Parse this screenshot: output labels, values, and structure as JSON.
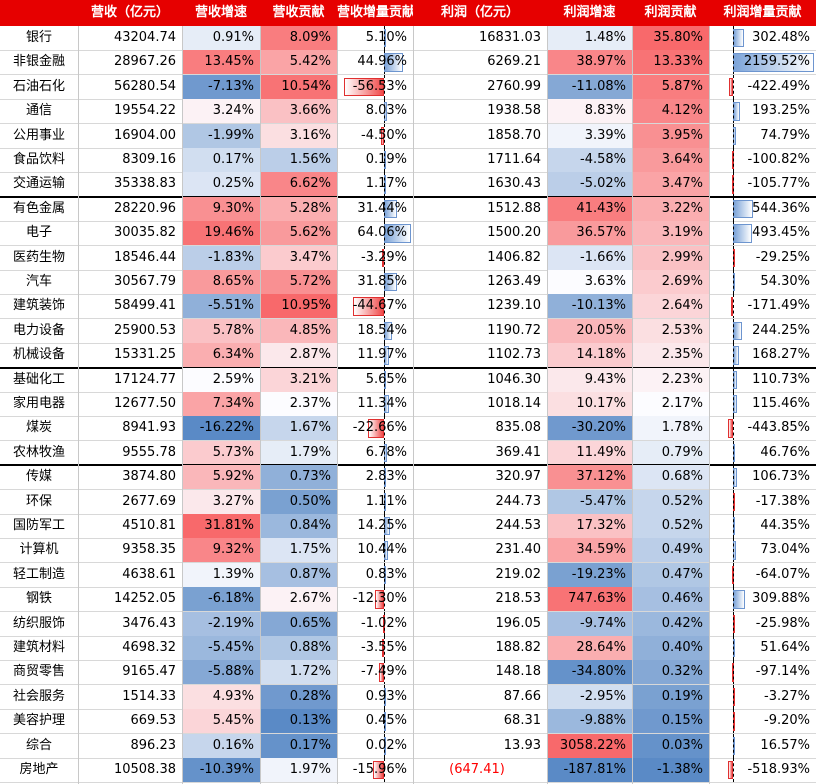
{
  "headers": [
    "",
    "营收（亿元）",
    "营收增速",
    "营收贡献",
    "营收增量贡献",
    "利润（亿元）",
    "利润增速",
    "利润贡献",
    "利润增量贡献"
  ],
  "group_breaks_after": [
    6,
    13,
    17
  ],
  "rows": [
    {
      "name": "银行",
      "revenue": "43204.74",
      "rev_growth": "0.91%",
      "rev_contrib": "8.09%",
      "rev_inc": "5.10%",
      "profit": "16831.03",
      "profit_growth": "1.48%",
      "profit_contrib": "35.80%",
      "profit_inc": "302.48%"
    },
    {
      "name": "非银金融",
      "revenue": "28967.26",
      "rev_growth": "13.45%",
      "rev_contrib": "5.42%",
      "rev_inc": "44.96%",
      "profit": "6269.21",
      "profit_growth": "38.97%",
      "profit_contrib": "13.33%",
      "profit_inc": "2159.52%"
    },
    {
      "name": "石油石化",
      "revenue": "56280.54",
      "rev_growth": "-7.13%",
      "rev_contrib": "10.54%",
      "rev_inc": "-56.53%",
      "profit": "2760.99",
      "profit_growth": "-11.08%",
      "profit_contrib": "5.87%",
      "profit_inc": "-422.49%"
    },
    {
      "name": "通信",
      "revenue": "19554.22",
      "rev_growth": "3.24%",
      "rev_contrib": "3.66%",
      "rev_inc": "8.03%",
      "profit": "1938.58",
      "profit_growth": "8.83%",
      "profit_contrib": "4.12%",
      "profit_inc": "193.25%"
    },
    {
      "name": "公用事业",
      "revenue": "16904.00",
      "rev_growth": "-1.99%",
      "rev_contrib": "3.16%",
      "rev_inc": "-4.50%",
      "profit": "1858.70",
      "profit_growth": "3.39%",
      "profit_contrib": "3.95%",
      "profit_inc": "74.79%"
    },
    {
      "name": "食品饮料",
      "revenue": "8309.16",
      "rev_growth": "0.17%",
      "rev_contrib": "1.56%",
      "rev_inc": "0.19%",
      "profit": "1711.64",
      "profit_growth": "-4.58%",
      "profit_contrib": "3.64%",
      "profit_inc": "-100.82%"
    },
    {
      "name": "交通运输",
      "revenue": "35338.83",
      "rev_growth": "0.25%",
      "rev_contrib": "6.62%",
      "rev_inc": "1.17%",
      "profit": "1630.43",
      "profit_growth": "-5.02%",
      "profit_contrib": "3.47%",
      "profit_inc": "-105.77%"
    },
    {
      "name": "有色金属",
      "revenue": "28220.96",
      "rev_growth": "9.30%",
      "rev_contrib": "5.28%",
      "rev_inc": "31.44%",
      "profit": "1512.88",
      "profit_growth": "41.43%",
      "profit_contrib": "3.22%",
      "profit_inc": "544.36%"
    },
    {
      "name": "电子",
      "revenue": "30035.82",
      "rev_growth": "19.46%",
      "rev_contrib": "5.62%",
      "rev_inc": "64.06%",
      "profit": "1500.20",
      "profit_growth": "36.57%",
      "profit_contrib": "3.19%",
      "profit_inc": "493.45%"
    },
    {
      "name": "医药生物",
      "revenue": "18546.44",
      "rev_growth": "-1.83%",
      "rev_contrib": "3.47%",
      "rev_inc": "-3.29%",
      "profit": "1406.82",
      "profit_growth": "-1.66%",
      "profit_contrib": "2.99%",
      "profit_inc": "-29.25%"
    },
    {
      "name": "汽车",
      "revenue": "30567.79",
      "rev_growth": "8.65%",
      "rev_contrib": "5.72%",
      "rev_inc": "31.85%",
      "profit": "1263.49",
      "profit_growth": "3.63%",
      "profit_contrib": "2.69%",
      "profit_inc": "54.30%"
    },
    {
      "name": "建筑装饰",
      "revenue": "58499.41",
      "rev_growth": "-5.51%",
      "rev_contrib": "10.95%",
      "rev_inc": "-44.67%",
      "profit": "1239.10",
      "profit_growth": "-10.13%",
      "profit_contrib": "2.64%",
      "profit_inc": "-171.49%"
    },
    {
      "name": "电力设备",
      "revenue": "25900.53",
      "rev_growth": "5.78%",
      "rev_contrib": "4.85%",
      "rev_inc": "18.54%",
      "profit": "1190.72",
      "profit_growth": "20.05%",
      "profit_contrib": "2.53%",
      "profit_inc": "244.25%"
    },
    {
      "name": "机械设备",
      "revenue": "15331.25",
      "rev_growth": "6.34%",
      "rev_contrib": "2.87%",
      "rev_inc": "11.97%",
      "profit": "1102.73",
      "profit_growth": "14.18%",
      "profit_contrib": "2.35%",
      "profit_inc": "168.27%"
    },
    {
      "name": "基础化工",
      "revenue": "17124.77",
      "rev_growth": "2.59%",
      "rev_contrib": "3.21%",
      "rev_inc": "5.65%",
      "profit": "1046.30",
      "profit_growth": "9.43%",
      "profit_contrib": "2.23%",
      "profit_inc": "110.73%"
    },
    {
      "name": "家用电器",
      "revenue": "12677.50",
      "rev_growth": "7.34%",
      "rev_contrib": "2.37%",
      "rev_inc": "11.34%",
      "profit": "1018.14",
      "profit_growth": "10.17%",
      "profit_contrib": "2.17%",
      "profit_inc": "115.46%"
    },
    {
      "name": "煤炭",
      "revenue": "8941.93",
      "rev_growth": "-16.22%",
      "rev_contrib": "1.67%",
      "rev_inc": "-22.66%",
      "profit": "835.08",
      "profit_growth": "-30.20%",
      "profit_contrib": "1.78%",
      "profit_inc": "-443.85%"
    },
    {
      "name": "农林牧渔",
      "revenue": "9555.78",
      "rev_growth": "5.73%",
      "rev_contrib": "1.79%",
      "rev_inc": "6.78%",
      "profit": "369.41",
      "profit_growth": "11.49%",
      "profit_contrib": "0.79%",
      "profit_inc": "46.76%"
    },
    {
      "name": "传媒",
      "revenue": "3874.80",
      "rev_growth": "5.92%",
      "rev_contrib": "0.73%",
      "rev_inc": "2.83%",
      "profit": "320.97",
      "profit_growth": "37.12%",
      "profit_contrib": "0.68%",
      "profit_inc": "106.73%"
    },
    {
      "name": "环保",
      "revenue": "2677.69",
      "rev_growth": "3.27%",
      "rev_contrib": "0.50%",
      "rev_inc": "1.11%",
      "profit": "244.73",
      "profit_growth": "-5.47%",
      "profit_contrib": "0.52%",
      "profit_inc": "-17.38%"
    },
    {
      "name": "国防军工",
      "revenue": "4510.81",
      "rev_growth": "31.81%",
      "rev_contrib": "0.84%",
      "rev_inc": "14.25%",
      "profit": "244.53",
      "profit_growth": "17.32%",
      "profit_contrib": "0.52%",
      "profit_inc": "44.35%"
    },
    {
      "name": "计算机",
      "revenue": "9358.35",
      "rev_growth": "9.32%",
      "rev_contrib": "1.75%",
      "rev_inc": "10.44%",
      "profit": "231.40",
      "profit_growth": "34.59%",
      "profit_contrib": "0.49%",
      "profit_inc": "73.04%"
    },
    {
      "name": "轻工制造",
      "revenue": "4638.61",
      "rev_growth": "1.39%",
      "rev_contrib": "0.87%",
      "rev_inc": "0.83%",
      "profit": "219.02",
      "profit_growth": "-19.23%",
      "profit_contrib": "0.47%",
      "profit_inc": "-64.07%"
    },
    {
      "name": "钢铁",
      "revenue": "14252.05",
      "rev_growth": "-6.18%",
      "rev_contrib": "2.67%",
      "rev_inc": "-12.30%",
      "profit": "218.53",
      "profit_growth": "747.63%",
      "profit_contrib": "0.46%",
      "profit_inc": "309.88%"
    },
    {
      "name": "纺织服饰",
      "revenue": "3476.43",
      "rev_growth": "-2.19%",
      "rev_contrib": "0.65%",
      "rev_inc": "-1.02%",
      "profit": "196.05",
      "profit_growth": "-9.74%",
      "profit_contrib": "0.42%",
      "profit_inc": "-25.98%"
    },
    {
      "name": "建筑材料",
      "revenue": "4698.32",
      "rev_growth": "-5.45%",
      "rev_contrib": "0.88%",
      "rev_inc": "-3.55%",
      "profit": "188.82",
      "profit_growth": "28.64%",
      "profit_contrib": "0.40%",
      "profit_inc": "51.64%"
    },
    {
      "name": "商贸零售",
      "revenue": "9165.47",
      "rev_growth": "-5.88%",
      "rev_contrib": "1.72%",
      "rev_inc": "-7.49%",
      "profit": "148.18",
      "profit_growth": "-34.80%",
      "profit_contrib": "0.32%",
      "profit_inc": "-97.14%"
    },
    {
      "name": "社会服务",
      "revenue": "1514.33",
      "rev_growth": "4.93%",
      "rev_contrib": "0.28%",
      "rev_inc": "0.93%",
      "profit": "87.66",
      "profit_growth": "-2.95%",
      "profit_contrib": "0.19%",
      "profit_inc": "-3.27%"
    },
    {
      "name": "美容护理",
      "revenue": "669.53",
      "rev_growth": "5.45%",
      "rev_contrib": "0.13%",
      "rev_inc": "0.45%",
      "profit": "68.31",
      "profit_growth": "-9.88%",
      "profit_contrib": "0.15%",
      "profit_inc": "-9.20%"
    },
    {
      "name": "综合",
      "revenue": "896.23",
      "rev_growth": "0.16%",
      "rev_contrib": "0.17%",
      "rev_inc": "0.02%",
      "profit": "13.93",
      "profit_growth": "3058.22%",
      "profit_contrib": "0.03%",
      "profit_inc": "16.57%"
    },
    {
      "name": "房地产",
      "revenue": "10508.38",
      "rev_growth": "-10.39%",
      "rev_contrib": "1.97%",
      "rev_inc": "-15.96%",
      "profit": "(647.41)",
      "profit_growth": "-187.81%",
      "profit_contrib": "-1.38%",
      "profit_inc": "-518.93%"
    }
  ],
  "colors": {
    "header_bg": "#e60000",
    "header_text": "#ffffff",
    "heat_red": "#f8696b",
    "heat_blue": "#5a8ac6",
    "neg_profit_text": "#ff0000"
  }
}
